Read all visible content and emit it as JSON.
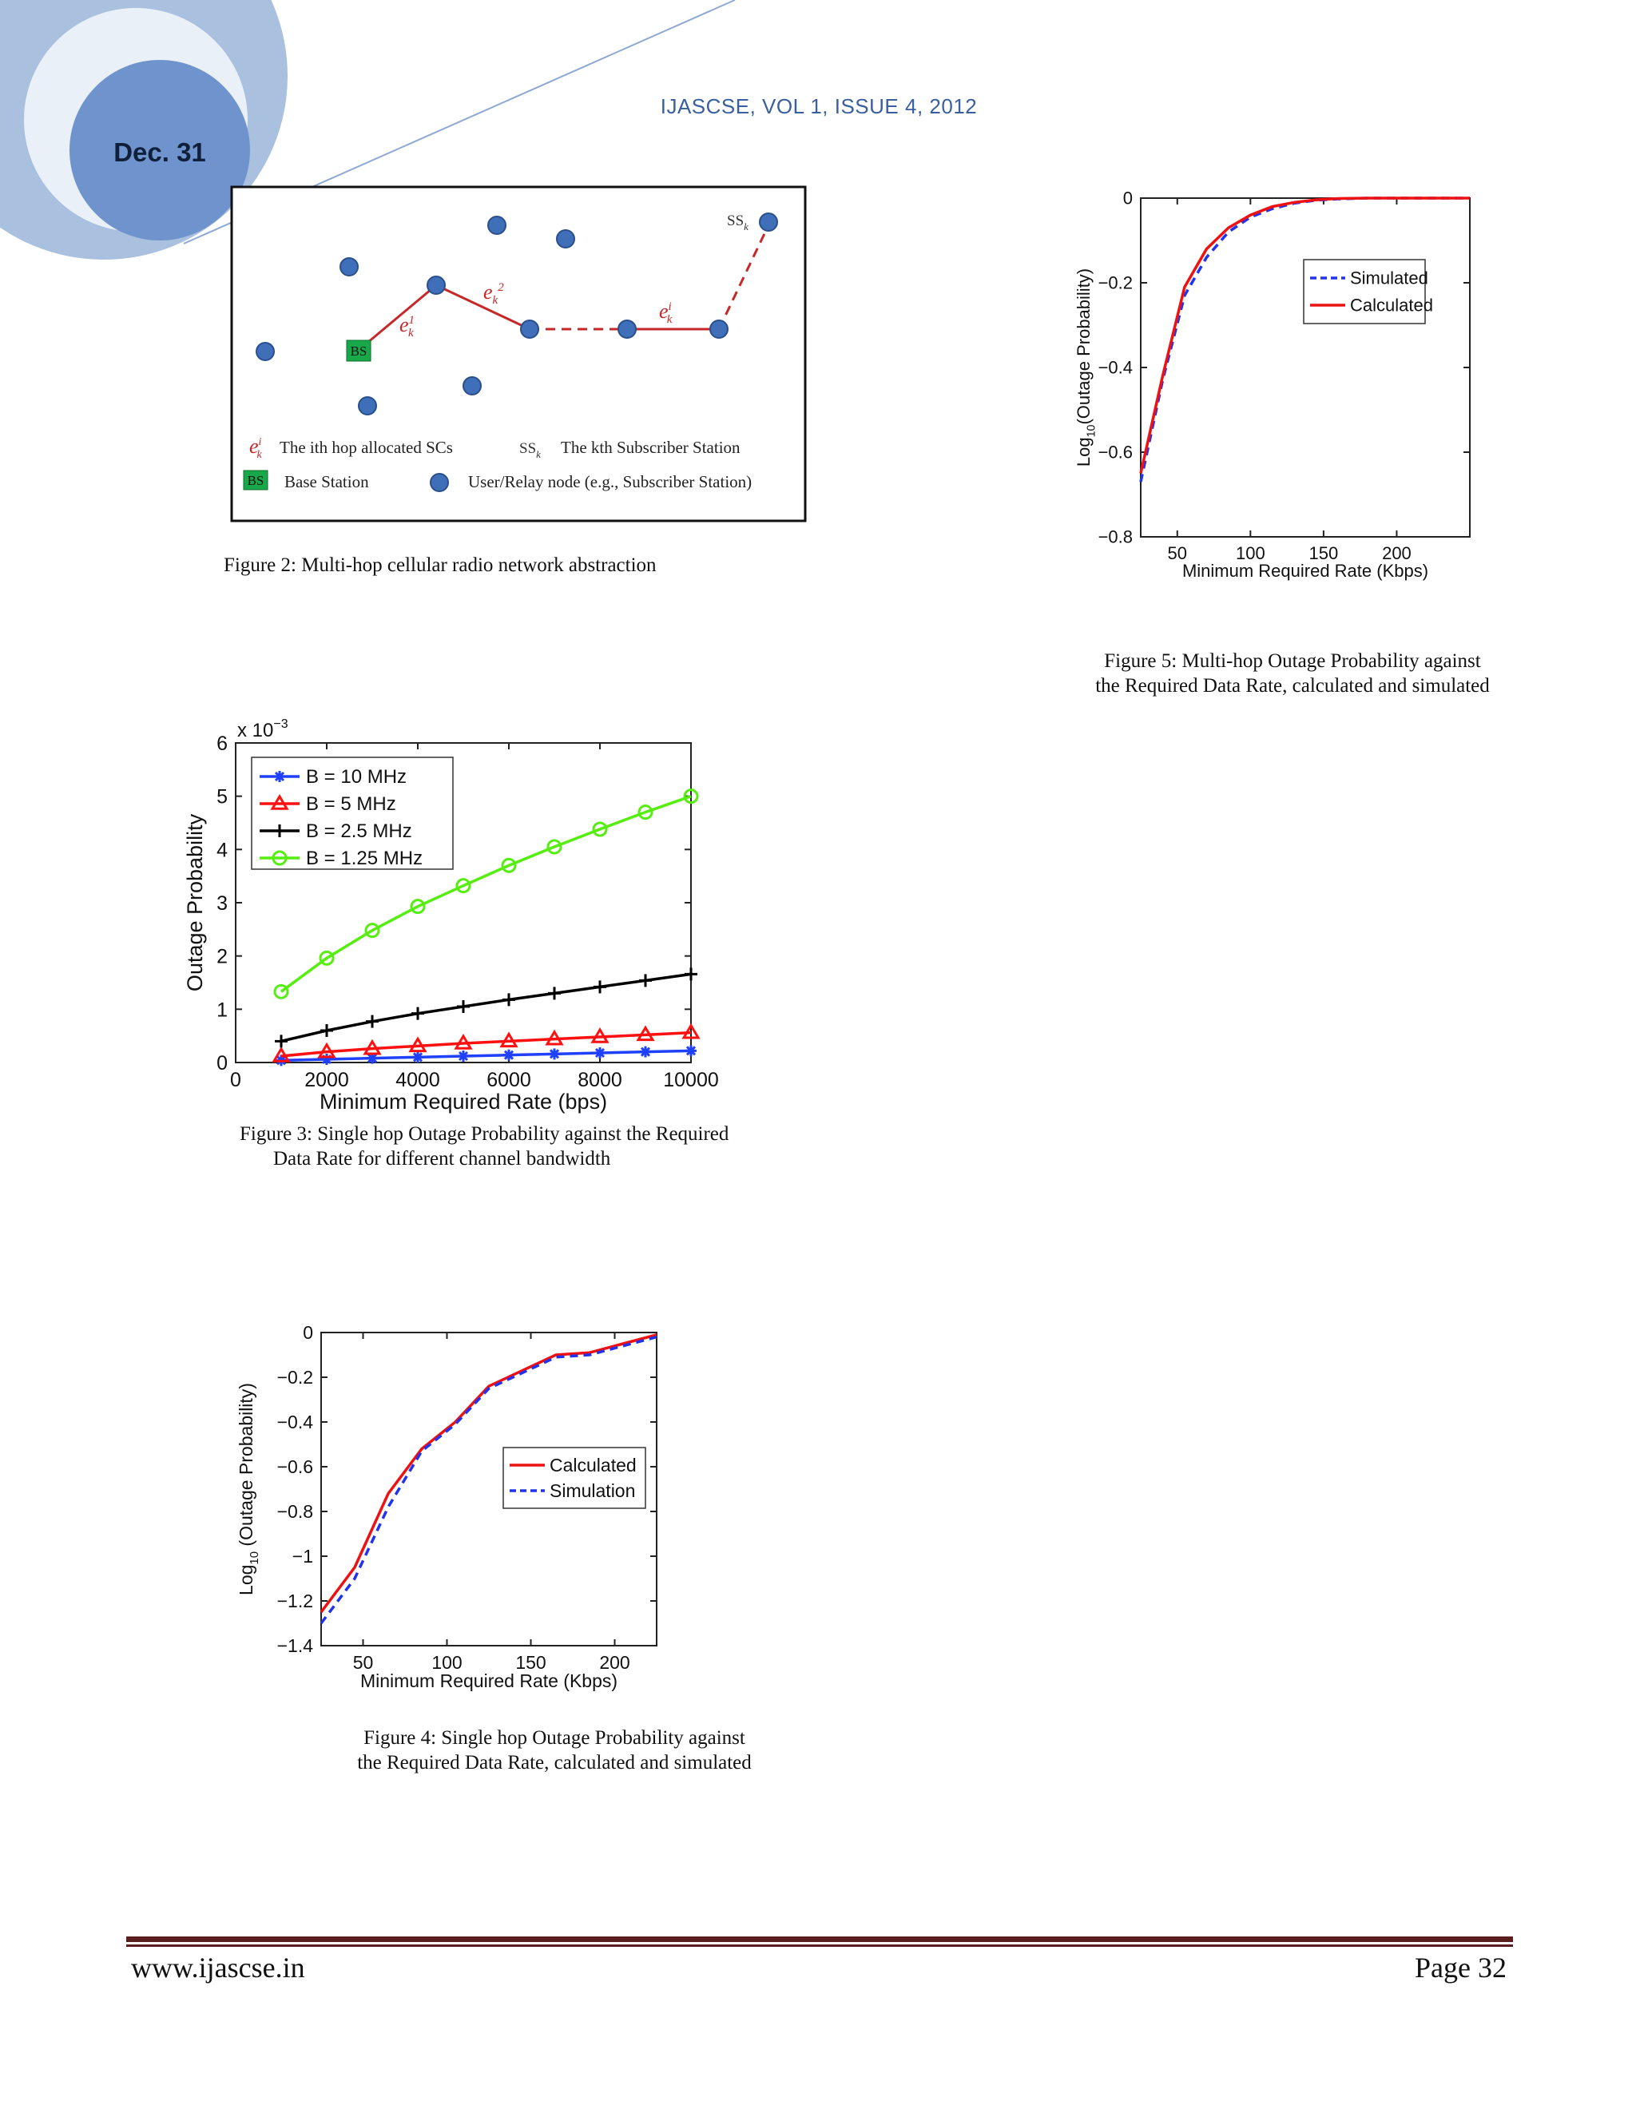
{
  "header": {
    "date": "Dec. 31",
    "journal": "IJASCSE, VOL 1, ISSUE 4, 2012"
  },
  "figure2": {
    "caption": "Figure  2: Multi-hop cellular radio network abstraction",
    "node_labels": {
      "bs": "BS",
      "ss": "SS",
      "ss_sub": "k",
      "e_base": "e",
      "e1_sup": "1",
      "e2_sup": "2",
      "ei_sup": "i",
      "e_sub": "k"
    },
    "legend": {
      "hop_text": "The ith hop allocated SCs",
      "ss_text": "The kth Subscriber Station",
      "bs_text": "Base Station",
      "node_text": "User/Relay node (e.g., Subscriber Station)"
    }
  },
  "figure3": {
    "caption_line1": "Figure  3: Single hop Outage Probability against the Required",
    "caption_line2": "Data Rate for different channel bandwidth"
  },
  "figure4": {
    "caption_line1": "Figure  4: Single hop Outage Probability against",
    "caption_line2": "the Required Data Rate, calculated and simulated"
  },
  "figure5": {
    "caption_line1": "Figure  5: Multi-hop Outage Probability against",
    "caption_line2": "the Required Data Rate, calculated and simulated"
  },
  "chart_data": [
    {
      "id": "fig3",
      "type": "line",
      "xlabel": "Minimum Required Rate (bps)",
      "ylabel": "Outage Probability",
      "exponent_label": "x 10",
      "exponent_power": "−3",
      "xlim": [
        0,
        10000
      ],
      "ylim": [
        0,
        6
      ],
      "xticks": [
        0,
        2000,
        4000,
        6000,
        8000,
        10000
      ],
      "yticks": [
        0,
        1,
        2,
        3,
        4,
        5,
        6
      ],
      "x": [
        1000,
        2000,
        3000,
        4000,
        5000,
        6000,
        7000,
        8000,
        9000,
        10000
      ],
      "legend_position": "top-left",
      "series": [
        {
          "name": "B = 10 MHz",
          "color": "#2040ff",
          "marker": "star",
          "values": [
            0.04,
            0.06,
            0.08,
            0.1,
            0.12,
            0.14,
            0.16,
            0.18,
            0.2,
            0.22
          ]
        },
        {
          "name": "B = 5 MHz",
          "color": "#ff1010",
          "marker": "triangle",
          "values": [
            0.12,
            0.2,
            0.26,
            0.31,
            0.36,
            0.4,
            0.44,
            0.48,
            0.52,
            0.56
          ]
        },
        {
          "name": "B = 2.5 MHz",
          "color": "#000000",
          "marker": "plus",
          "values": [
            0.4,
            0.6,
            0.77,
            0.92,
            1.05,
            1.18,
            1.3,
            1.42,
            1.54,
            1.66
          ]
        },
        {
          "name": "B = 1.25 MHz",
          "color": "#55ee10",
          "marker": "circle",
          "values": [
            1.33,
            1.96,
            2.48,
            2.93,
            3.32,
            3.7,
            4.05,
            4.38,
            4.7,
            5.0
          ]
        }
      ]
    },
    {
      "id": "fig4",
      "type": "line",
      "xlabel": "Minimum Required Rate (Kbps)",
      "ylabel_main": "Log",
      "ylabel_sub": "10",
      "ylabel_rest": " (Outage Probability)",
      "xlim": [
        25,
        225
      ],
      "ylim": [
        -1.4,
        0
      ],
      "xticks": [
        50,
        100,
        150,
        200
      ],
      "yticks": [
        0,
        -0.2,
        -0.4,
        -0.6,
        -0.8,
        -1,
        -1.2,
        -1.4
      ],
      "ytick_labels": [
        "0",
        "−0.2",
        "−0.4",
        "−0.6",
        "−0.8",
        "−1",
        "−1.2",
        "−1.4"
      ],
      "legend_position": "center-right",
      "series": [
        {
          "name": "Calculated",
          "color": "#ee1111",
          "dash": "solid",
          "points": [
            [
              25,
              -1.25
            ],
            [
              45,
              -1.05
            ],
            [
              65,
              -0.72
            ],
            [
              85,
              -0.52
            ],
            [
              105,
              -0.4
            ],
            [
              125,
              -0.24
            ],
            [
              145,
              -0.17
            ],
            [
              165,
              -0.1
            ],
            [
              185,
              -0.09
            ],
            [
              205,
              -0.05
            ],
            [
              225,
              -0.01
            ]
          ]
        },
        {
          "name": "Simulation",
          "color": "#2233ee",
          "dash": "dashed",
          "points": [
            [
              25,
              -1.3
            ],
            [
              45,
              -1.1
            ],
            [
              65,
              -0.78
            ],
            [
              85,
              -0.53
            ],
            [
              105,
              -0.41
            ],
            [
              125,
              -0.25
            ],
            [
              145,
              -0.18
            ],
            [
              165,
              -0.11
            ],
            [
              185,
              -0.1
            ],
            [
              205,
              -0.06
            ],
            [
              225,
              -0.02
            ]
          ]
        }
      ]
    },
    {
      "id": "fig5",
      "type": "line",
      "xlabel": "Minimum Required Rate (Kbps)",
      "ylabel_main": "Log",
      "ylabel_sub": "10",
      "ylabel_rest": "(Outage Probability)",
      "xlim": [
        25,
        250
      ],
      "ylim": [
        -0.8,
        0
      ],
      "xticks": [
        50,
        100,
        150,
        200
      ],
      "yticks": [
        0,
        -0.2,
        -0.4,
        -0.6,
        -0.8
      ],
      "ytick_labels": [
        "0",
        "−0.2",
        "−0.4",
        "−0.6",
        "−0.8"
      ],
      "legend_position": "top-right",
      "series": [
        {
          "name": "Simulated",
          "color": "#2233ee",
          "dash": "dashed",
          "points": [
            [
              25,
              -0.67
            ],
            [
              40,
              -0.43
            ],
            [
              55,
              -0.23
            ],
            [
              70,
              -0.14
            ],
            [
              85,
              -0.08
            ],
            [
              100,
              -0.045
            ],
            [
              115,
              -0.025
            ],
            [
              130,
              -0.012
            ],
            [
              145,
              -0.005
            ],
            [
              160,
              -0.002
            ],
            [
              180,
              0
            ],
            [
              220,
              0
            ],
            [
              250,
              0
            ]
          ]
        },
        {
          "name": "Calculated",
          "color": "#ee1111",
          "dash": "solid",
          "points": [
            [
              25,
              -0.65
            ],
            [
              40,
              -0.42
            ],
            [
              55,
              -0.21
            ],
            [
              70,
              -0.12
            ],
            [
              85,
              -0.07
            ],
            [
              100,
              -0.04
            ],
            [
              115,
              -0.02
            ],
            [
              130,
              -0.01
            ],
            [
              145,
              -0.004
            ],
            [
              160,
              -0.001
            ],
            [
              180,
              0
            ],
            [
              220,
              0
            ],
            [
              250,
              0
            ]
          ]
        }
      ]
    }
  ],
  "footer": {
    "url": "www.ijascse.in",
    "page": "Page 32"
  }
}
